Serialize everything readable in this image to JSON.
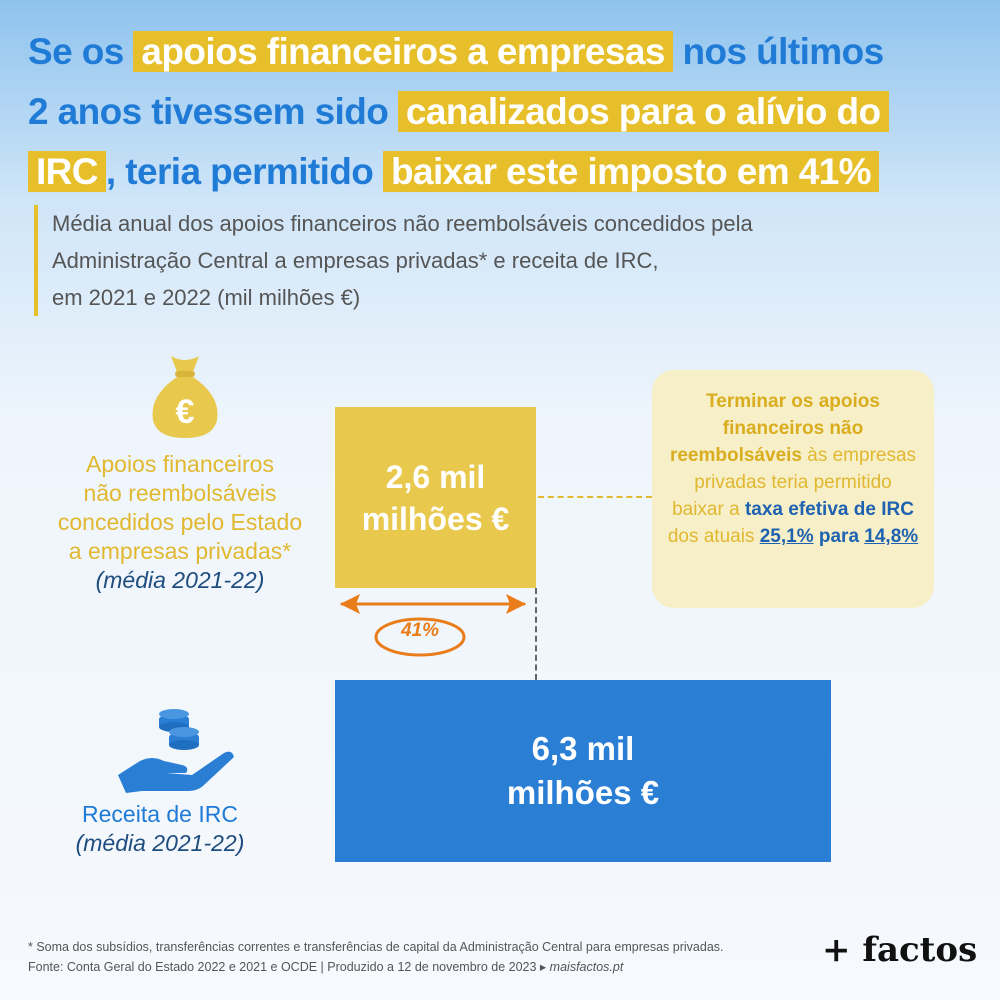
{
  "title": {
    "line1": [
      "Se os ",
      "apoios financeiros a empresas",
      " nos últimos"
    ],
    "line2": [
      "2 anos tivessem sido ",
      "canalizados para o alívio do"
    ],
    "line3": [
      "IRC",
      ", teria permitido ",
      "baixar este imposto em 41%"
    ]
  },
  "subtitle": {
    "line1": "Média anual dos apoios financeiros não reembolsáveis concedidos pela",
    "line2": "Administração Central a empresas privadas* e receita de IRC,",
    "line3": "em 2021 e 2022 (mil milhões €)"
  },
  "labels": {
    "apoios": [
      "Apoios financeiros",
      "não reembolsáveis",
      "concedidos pelo Estado",
      "a empresas privadas*"
    ],
    "apoios_period": "(média 2021-22)",
    "irc": "Receita de IRC",
    "irc_period": "(média 2021-22)"
  },
  "icons": {
    "apoios": "euro-money-bag-icon",
    "irc": "hand-with-coins-icon"
  },
  "chart_data": {
    "type": "bar",
    "categories": [
      "Apoios financeiros não reembolsáveis",
      "Receita de IRC"
    ],
    "values": [
      2.6,
      6.3
    ],
    "value_labels": [
      [
        "2,6 mil",
        "milhões €"
      ],
      [
        "6,3 mil",
        "milhões €"
      ]
    ],
    "unit": "mil milhões €",
    "difference_label": "41%",
    "colors": [
      "#e9c84e",
      "#2a7fd5"
    ]
  },
  "callout": {
    "p1": "Terminar os apoios financeiros não reembolsáveis",
    "p2": " às empresas privadas teria permitido baixar a ",
    "p3": "taxa efetiva de IRC",
    "p4": " dos atuais ",
    "from": "25,1%",
    "p5": " para ",
    "to": "14,8%"
  },
  "footer": {
    "note": "* Soma dos subsídios, transferências correntes e transferências de capital da Administração Central para empresas privadas.",
    "source": "Fonte: Conta Geral do Estado 2022 e 2021 e OCDE  |  Produzido a 12 de novembro de 2023 ▸ ",
    "site": "maisfactos.pt",
    "logo": "+ factos"
  },
  "colors": {
    "accent_yellow": "#e7bf2b",
    "accent_blue": "#1f7bd6",
    "arrow_orange": "#e97d1a"
  }
}
